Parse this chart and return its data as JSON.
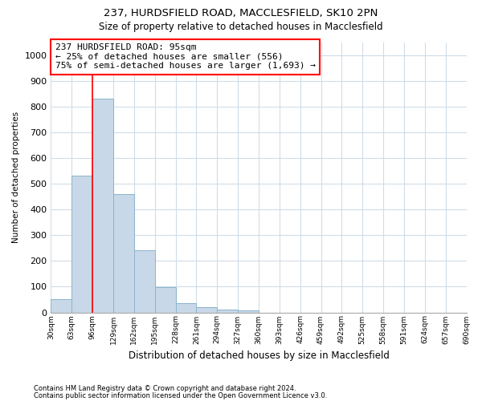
{
  "title_line1": "237, HURDSFIELD ROAD, MACCLESFIELD, SK10 2PN",
  "title_line2": "Size of property relative to detached houses in Macclesfield",
  "xlabel": "Distribution of detached houses by size in Macclesfield",
  "ylabel": "Number of detached properties",
  "footnote1": "Contains HM Land Registry data © Crown copyright and database right 2024.",
  "footnote2": "Contains public sector information licensed under the Open Government Licence v3.0.",
  "bar_values": [
    50,
    530,
    830,
    460,
    240,
    97,
    35,
    20,
    12,
    8,
    0,
    0,
    0,
    0,
    0,
    0,
    0,
    0,
    0,
    0
  ],
  "bin_labels": [
    "30sqm",
    "63sqm",
    "96sqm",
    "129sqm",
    "162sqm",
    "195sqm",
    "228sqm",
    "261sqm",
    "294sqm",
    "327sqm",
    "360sqm",
    "393sqm",
    "426sqm",
    "459sqm",
    "492sqm",
    "525sqm",
    "558sqm",
    "591sqm",
    "624sqm",
    "657sqm",
    "690sqm"
  ],
  "bar_color": "#c8d8e8",
  "bar_edge_color": "#8ab4cc",
  "grid_color": "#d0dce8",
  "vline_color": "red",
  "vline_position": 2.0,
  "annotation_text": "237 HURDSFIELD ROAD: 95sqm\n← 25% of detached houses are smaller (556)\n75% of semi-detached houses are larger (1,693) →",
  "annotation_box_color": "white",
  "annotation_box_edge": "red",
  "ylim": [
    0,
    1050
  ],
  "yticks": [
    0,
    100,
    200,
    300,
    400,
    500,
    600,
    700,
    800,
    900,
    1000
  ],
  "background_color": "white"
}
